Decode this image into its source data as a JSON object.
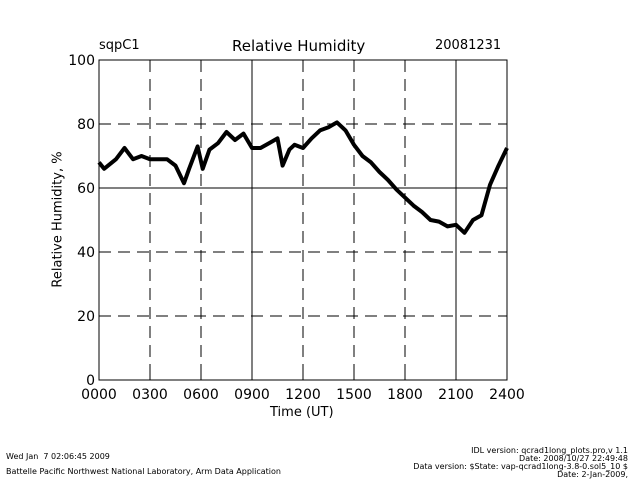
{
  "chart_data": {
    "type": "line",
    "title": "Relative Humidity",
    "site": "sqpC1",
    "date": "20081231",
    "xlabel": "Time (UT)",
    "ylabel": "Relative Humidity, %",
    "xlim": [
      0,
      24
    ],
    "ylim": [
      0,
      100
    ],
    "xticks": [
      0,
      3,
      6,
      9,
      12,
      15,
      18,
      21,
      24
    ],
    "xtick_labels": [
      "0000",
      "0300",
      "0600",
      "0900",
      "1200",
      "1500",
      "1800",
      "2100",
      "2400"
    ],
    "yticks": [
      0,
      20,
      40,
      60,
      80,
      100
    ],
    "ytick_labels": [
      "0",
      "20",
      "40",
      "60",
      "80",
      "100"
    ],
    "grid": true,
    "series": [
      {
        "name": "Relative Humidity",
        "x": [
          0,
          0.3,
          1,
          1.5,
          2,
          2.5,
          3,
          3.5,
          4,
          4.5,
          5,
          5.3,
          5.8,
          6.1,
          6.5,
          7,
          7.5,
          8,
          8.5,
          9,
          9.5,
          10,
          10.5,
          10.8,
          11.2,
          11.5,
          12,
          12.5,
          13,
          13.5,
          14,
          14.5,
          15,
          15.5,
          16,
          16.5,
          17,
          17.5,
          18,
          18.5,
          19,
          19.5,
          20,
          20.5,
          21,
          21.5,
          22,
          22.5,
          23,
          23.5,
          24
        ],
        "y": [
          68,
          66,
          69,
          72.5,
          69,
          70,
          69,
          69,
          69,
          67,
          61.5,
          66,
          73,
          66,
          72,
          74,
          77.5,
          75,
          77,
          72.5,
          72.5,
          74,
          75.5,
          67,
          72,
          73.5,
          72.5,
          75.5,
          78,
          79,
          80.5,
          78,
          73.5,
          70,
          68,
          65,
          62.5,
          59.5,
          57,
          54.5,
          52.5,
          50,
          49.5,
          48,
          48.5,
          46,
          50,
          51.5,
          61,
          67,
          72.5
        ]
      }
    ]
  },
  "footer": {
    "timestamp": "Wed Jan  7 02:06:45 2009",
    "institution": "Battelle Pacific Northwest National Laboratory, Arm Data Application",
    "idl_version": "IDL version: qcrad1long_plots.pro,v 1.1",
    "idl_date": "Date: 2008/10/27 22:49:48",
    "data_version": "Data version: $State: vap-qcrad1long-3.8-0.sol5_10 $",
    "data_date": "Date: 2-Jan-2009,"
  }
}
